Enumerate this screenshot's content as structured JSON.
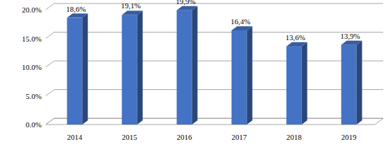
{
  "chart_data": {
    "type": "bar",
    "categories": [
      "2014",
      "2015",
      "2016",
      "2017",
      "2018",
      "2019"
    ],
    "values": [
      18.6,
      19.1,
      19.9,
      16.4,
      13.6,
      13.9
    ],
    "value_labels": [
      "18,6%",
      "19,1%",
      "19,9%",
      "16,4%",
      "13,6%",
      "13,9%"
    ],
    "color": "#4472c4",
    "ylim": [
      0,
      20
    ],
    "yticks": [
      {
        "value": 0,
        "label": "0.0%"
      },
      {
        "value": 5,
        "label": "5.0%"
      },
      {
        "value": 10,
        "label": "10.0%"
      },
      {
        "value": 15,
        "label": "15.0%"
      },
      {
        "value": 20,
        "label": "20.0%"
      }
    ],
    "grid": true,
    "data_labels": true
  }
}
